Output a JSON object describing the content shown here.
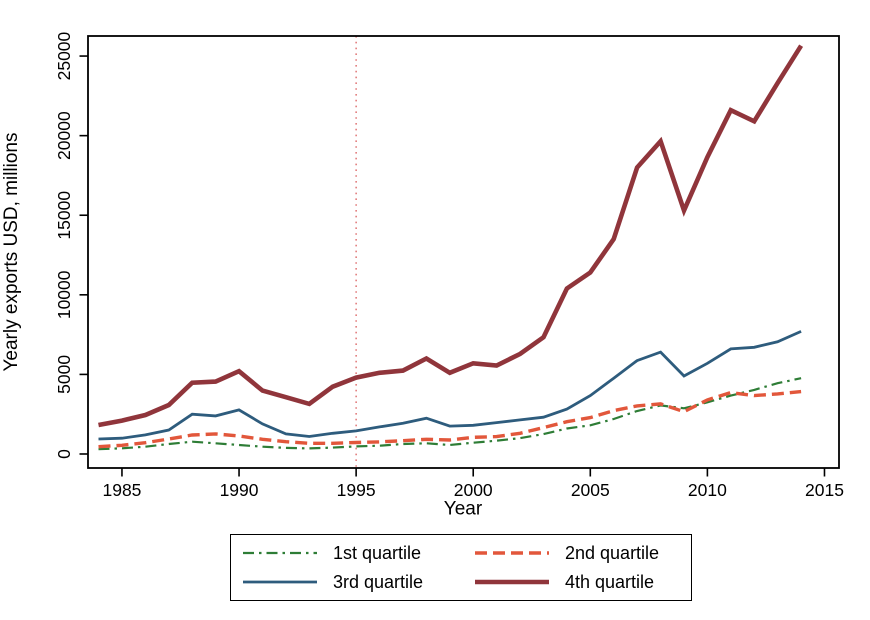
{
  "chart_data": {
    "type": "line",
    "title": "",
    "xlabel": "Year",
    "ylabel": "Yearly exports USD, millions",
    "x": [
      1984,
      1985,
      1986,
      1987,
      1988,
      1989,
      1990,
      1991,
      1992,
      1993,
      1994,
      1995,
      1996,
      1997,
      1998,
      1999,
      2000,
      2001,
      2002,
      2003,
      2004,
      2005,
      2006,
      2007,
      2008,
      2009,
      2010,
      2011,
      2012,
      2013,
      2014
    ],
    "x_ticks": [
      1985,
      1990,
      1995,
      2000,
      2005,
      2010,
      2015
    ],
    "y_ticks": [
      0,
      5000,
      10000,
      15000,
      20000,
      25000
    ],
    "xlim": [
      1983.55,
      2015.62
    ],
    "ylim": [
      -880,
      26260
    ],
    "grid": false,
    "legend_position": "bottom",
    "reference_line": {
      "axis": "x",
      "value": 1995,
      "style": "dotted",
      "color": "#dd6a6a"
    },
    "series": [
      {
        "name": "1st quartile",
        "color": "#2e7d36",
        "dash": "dash-dot",
        "width": 2.2,
        "values": [
          300,
          360,
          460,
          630,
          775,
          670,
          565,
          460,
          380,
          350,
          400,
          480,
          520,
          630,
          670,
          565,
          710,
          835,
          1000,
          1250,
          1600,
          1800,
          2200,
          2700,
          3050,
          2870,
          3250,
          3670,
          4025,
          4445,
          4760
        ]
      },
      {
        "name": "2nd quartile",
        "color": "#e2573b",
        "dash": "dashed",
        "width": 3.4,
        "values": [
          460,
          545,
          710,
          945,
          1195,
          1260,
          1130,
          925,
          775,
          670,
          670,
          720,
          760,
          835,
          925,
          880,
          1050,
          1090,
          1300,
          1655,
          2030,
          2285,
          2725,
          3020,
          3145,
          2660,
          3400,
          3860,
          3670,
          3775,
          3920
        ]
      },
      {
        "name": "3rd quartile",
        "color": "#2e5c7d",
        "dash": "solid",
        "width": 2.8,
        "values": [
          940,
          990,
          1200,
          1510,
          2500,
          2390,
          2770,
          1890,
          1260,
          1100,
          1300,
          1450,
          1700,
          1930,
          2250,
          1750,
          1800,
          1970,
          2140,
          2310,
          2820,
          3670,
          4760,
          5870,
          6400,
          4900,
          5700,
          6600,
          6700,
          7050,
          7700
        ]
      },
      {
        "name": "4th quartile",
        "color": "#90353b",
        "dash": "solid",
        "width": 4.6,
        "values": [
          1820,
          2100,
          2450,
          3080,
          4480,
          4550,
          5200,
          3980,
          3570,
          3150,
          4230,
          4800,
          5100,
          5240,
          6000,
          5100,
          5700,
          5560,
          6290,
          7340,
          10400,
          11400,
          13500,
          18000,
          19650,
          15300,
          18650,
          21600,
          20900,
          23300,
          25650
        ]
      }
    ]
  }
}
